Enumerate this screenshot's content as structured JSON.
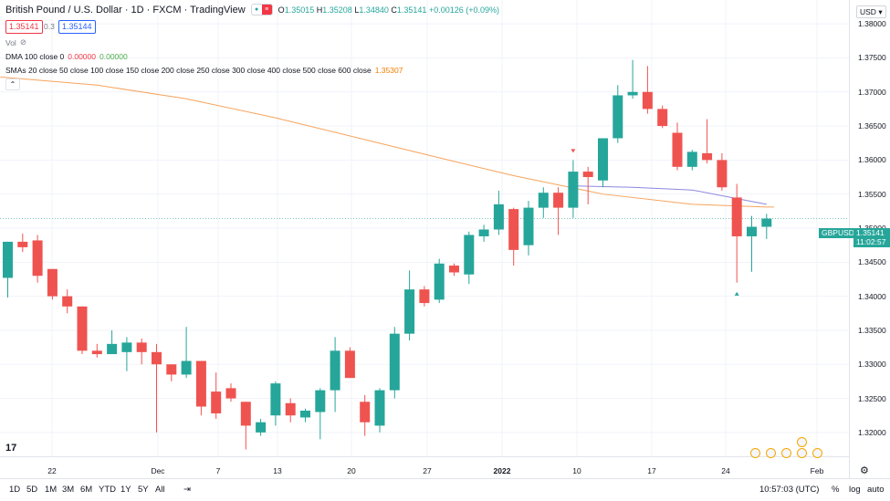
{
  "header": {
    "title": "British Pound / U.S. Dollar · 1D · FXCM · TradingView",
    "ohlc": {
      "o_label": "O",
      "o": "1.35015",
      "h_label": "H",
      "h": "1.35208",
      "l_label": "L",
      "l": "1.34840",
      "c_label": "C",
      "c": "1.35141",
      "change": "+0.00126 (+0.09%)"
    },
    "bid": "1.35141",
    "spread": "0.3",
    "ask": "1.35144",
    "vol_label": "Vol"
  },
  "indicators": {
    "dma_label": "DMA 100 close 0",
    "dma_v1": "0.00000",
    "dma_v2": "0.00000",
    "sma_label": "SMAs 20 close 50 close 100 close 150 close 200 close 250 close 300 close 400 close 500 close 600 close",
    "sma_value": "1.35307"
  },
  "price_axis": {
    "currency": "USD",
    "ticks": [
      "1.38000",
      "1.37500",
      "1.37000",
      "1.36500",
      "1.36000",
      "1.35500",
      "1.35000",
      "1.34500",
      "1.34000",
      "1.33500",
      "1.33000",
      "1.32500",
      "1.32000"
    ],
    "symbol_tag": "GBPUSD",
    "last_price": "1.35141",
    "countdown": "11:02:57"
  },
  "time_axis": {
    "labels": [
      "22",
      "Dec",
      "7",
      "13",
      "20",
      "27",
      "2022",
      "10",
      "17",
      "24",
      "Feb"
    ]
  },
  "bottom_bar": {
    "ranges": [
      "1D",
      "5D",
      "1M",
      "3M",
      "6M",
      "YTD",
      "1Y",
      "5Y",
      "All"
    ],
    "time": "10:57:03 (UTC)",
    "percent": "%",
    "log": "log",
    "auto": "auto"
  },
  "colors": {
    "up": "#26a69a",
    "down": "#ef5350",
    "sma_orange": "#f7a35c",
    "sma_purple": "#8c88e0",
    "grid": "#f0f3fa"
  },
  "chart_data": {
    "type": "candlestick",
    "symbol": "GBPUSD",
    "interval": "1D",
    "ylim": [
      1.3165,
      1.3835
    ],
    "x_labels": [
      "22",
      "Dec",
      "7",
      "13",
      "20",
      "27",
      "2022",
      "10",
      "17",
      "24",
      "Feb"
    ],
    "candles": [
      {
        "o": 1.3427,
        "h": 1.348,
        "l": 1.3398,
        "c": 1.348
      },
      {
        "o": 1.348,
        "h": 1.3492,
        "l": 1.3465,
        "c": 1.3472
      },
      {
        "o": 1.3482,
        "h": 1.349,
        "l": 1.342,
        "c": 1.343
      },
      {
        "o": 1.344,
        "h": 1.344,
        "l": 1.3395,
        "c": 1.34
      },
      {
        "o": 1.34,
        "h": 1.341,
        "l": 1.3375,
        "c": 1.3385
      },
      {
        "o": 1.3385,
        "h": 1.3385,
        "l": 1.3315,
        "c": 1.332
      },
      {
        "o": 1.332,
        "h": 1.333,
        "l": 1.331,
        "c": 1.3315
      },
      {
        "o": 1.3315,
        "h": 1.335,
        "l": 1.3315,
        "c": 1.333
      },
      {
        "o": 1.3318,
        "h": 1.334,
        "l": 1.329,
        "c": 1.3332
      },
      {
        "o": 1.3332,
        "h": 1.3338,
        "l": 1.33,
        "c": 1.3318
      },
      {
        "o": 1.3318,
        "h": 1.333,
        "l": 1.32,
        "c": 1.33
      },
      {
        "o": 1.33,
        "h": 1.33,
        "l": 1.3275,
        "c": 1.3285
      },
      {
        "o": 1.3285,
        "h": 1.3355,
        "l": 1.328,
        "c": 1.3305
      },
      {
        "o": 1.3305,
        "h": 1.3305,
        "l": 1.3225,
        "c": 1.3238
      },
      {
        "o": 1.326,
        "h": 1.3288,
        "l": 1.322,
        "c": 1.3228
      },
      {
        "o": 1.3265,
        "h": 1.3272,
        "l": 1.3245,
        "c": 1.325
      },
      {
        "o": 1.3245,
        "h": 1.3245,
        "l": 1.3175,
        "c": 1.321
      },
      {
        "o": 1.32,
        "h": 1.322,
        "l": 1.3195,
        "c": 1.3215
      },
      {
        "o": 1.3225,
        "h": 1.3275,
        "l": 1.321,
        "c": 1.3272
      },
      {
        "o": 1.3243,
        "h": 1.325,
        "l": 1.3215,
        "c": 1.3225
      },
      {
        "o": 1.3222,
        "h": 1.3235,
        "l": 1.3215,
        "c": 1.3232
      },
      {
        "o": 1.323,
        "h": 1.3265,
        "l": 1.319,
        "c": 1.3262
      },
      {
        "o": 1.3262,
        "h": 1.334,
        "l": 1.323,
        "c": 1.332
      },
      {
        "o": 1.332,
        "h": 1.3325,
        "l": 1.328,
        "c": 1.328
      },
      {
        "o": 1.3245,
        "h": 1.3255,
        "l": 1.3195,
        "c": 1.3215
      },
      {
        "o": 1.321,
        "h": 1.3265,
        "l": 1.32,
        "c": 1.3262
      },
      {
        "o": 1.3262,
        "h": 1.3355,
        "l": 1.325,
        "c": 1.3345
      },
      {
        "o": 1.3345,
        "h": 1.3438,
        "l": 1.3335,
        "c": 1.341
      },
      {
        "o": 1.341,
        "h": 1.3415,
        "l": 1.3385,
        "c": 1.339
      },
      {
        "o": 1.3395,
        "h": 1.3455,
        "l": 1.339,
        "c": 1.3448
      },
      {
        "o": 1.3445,
        "h": 1.3448,
        "l": 1.343,
        "c": 1.3435
      },
      {
        "o": 1.3432,
        "h": 1.3495,
        "l": 1.3418,
        "c": 1.349
      },
      {
        "o": 1.3488,
        "h": 1.3505,
        "l": 1.348,
        "c": 1.3498
      },
      {
        "o": 1.3498,
        "h": 1.3555,
        "l": 1.349,
        "c": 1.3535
      },
      {
        "o": 1.3528,
        "h": 1.353,
        "l": 1.3445,
        "c": 1.3468
      },
      {
        "o": 1.3475,
        "h": 1.354,
        "l": 1.346,
        "c": 1.353
      },
      {
        "o": 1.353,
        "h": 1.356,
        "l": 1.3515,
        "c": 1.3552
      },
      {
        "o": 1.3552,
        "h": 1.356,
        "l": 1.349,
        "c": 1.353
      },
      {
        "o": 1.353,
        "h": 1.36,
        "l": 1.3515,
        "c": 1.3583
      },
      {
        "o": 1.3583,
        "h": 1.359,
        "l": 1.3535,
        "c": 1.3575
      },
      {
        "o": 1.357,
        "h": 1.363,
        "l": 1.356,
        "c": 1.3632
      },
      {
        "o": 1.3632,
        "h": 1.371,
        "l": 1.3625,
        "c": 1.3695
      },
      {
        "o": 1.3695,
        "h": 1.3747,
        "l": 1.369,
        "c": 1.37
      },
      {
        "o": 1.37,
        "h": 1.3738,
        "l": 1.3668,
        "c": 1.3675
      },
      {
        "o": 1.3675,
        "h": 1.368,
        "l": 1.3647,
        "c": 1.365
      },
      {
        "o": 1.364,
        "h": 1.3655,
        "l": 1.3585,
        "c": 1.359
      },
      {
        "o": 1.359,
        "h": 1.3615,
        "l": 1.3585,
        "c": 1.3612
      },
      {
        "o": 1.361,
        "h": 1.366,
        "l": 1.3595,
        "c": 1.36
      },
      {
        "o": 1.36,
        "h": 1.361,
        "l": 1.3555,
        "c": 1.356
      },
      {
        "o": 1.3545,
        "h": 1.3565,
        "l": 1.342,
        "c": 1.3488
      },
      {
        "o": 1.3488,
        "h": 1.3518,
        "l": 1.3436,
        "c": 1.3502
      },
      {
        "o": 1.3502,
        "h": 1.3521,
        "l": 1.3484,
        "c": 1.3514
      }
    ],
    "sma_orange": [
      [
        0,
        1.3722
      ],
      [
        6,
        1.371
      ],
      [
        12,
        1.369
      ],
      [
        18,
        1.3662
      ],
      [
        24,
        1.363
      ],
      [
        30,
        1.3598
      ],
      [
        34,
        1.3577
      ],
      [
        40,
        1.355
      ],
      [
        46,
        1.3535
      ],
      [
        51,
        1.3531
      ]
    ],
    "sma_purple": [
      [
        38,
        1.3562
      ],
      [
        42,
        1.356
      ],
      [
        46,
        1.3556
      ],
      [
        51,
        1.3535
      ]
    ],
    "markers": [
      {
        "index": 38,
        "type": "arrow-down",
        "price": 1.3612
      },
      {
        "index": 49,
        "type": "arrow-up",
        "price": 1.3405
      }
    ]
  }
}
